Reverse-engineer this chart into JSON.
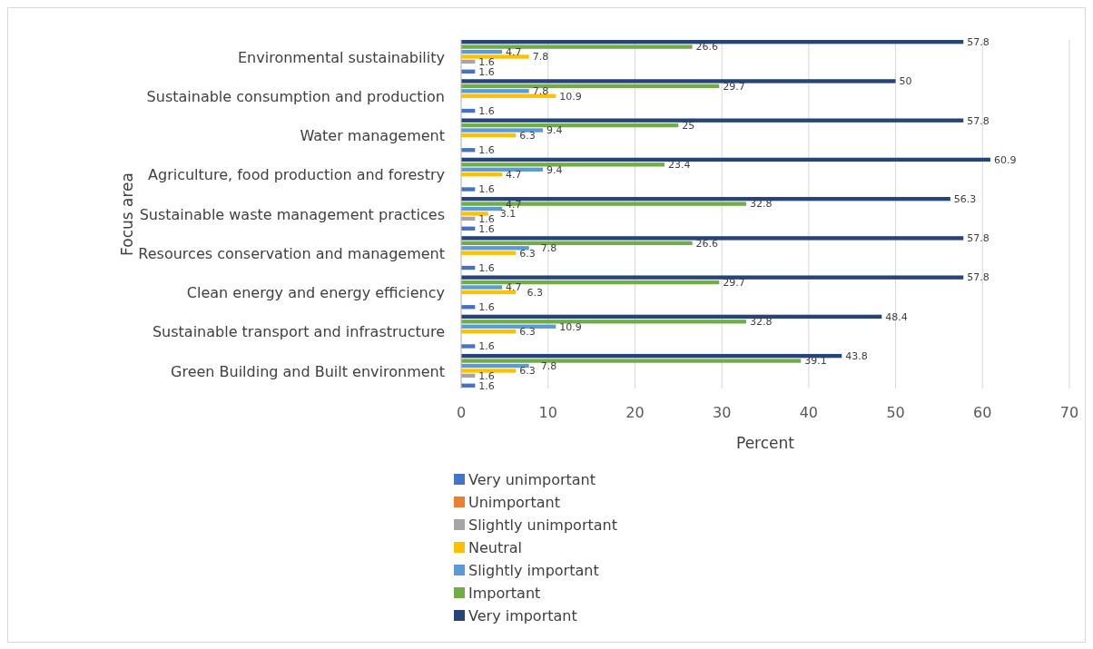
{
  "chart_data": {
    "type": "bar",
    "orientation": "horizontal",
    "xlabel": "Percent",
    "ylabel": "Focus area",
    "categories": [
      "Environmental sustainability",
      "Sustainable consumption and production",
      "Water management",
      "Agriculture, food production and forestry",
      "Sustainable waste management practices",
      "Resources conservation and management",
      "Clean energy and energy efficiency",
      "Sustainable transport and infrastructure",
      "Green Building and Built environment"
    ],
    "series": [
      {
        "name": "Very unimportant",
        "color": "#4472c4",
        "values": [
          1.6,
          1.6,
          1.6,
          1.6,
          1.6,
          1.6,
          1.6,
          1.6,
          1.6
        ]
      },
      {
        "name": "Unimportant",
        "color": "#ed7d31",
        "values": [
          null,
          null,
          null,
          null,
          null,
          null,
          null,
          null,
          null
        ]
      },
      {
        "name": "Slightly unimportant",
        "color": "#a5a5a5",
        "values": [
          1.6,
          null,
          null,
          null,
          1.6,
          null,
          null,
          null,
          1.6
        ]
      },
      {
        "name": "Neutral",
        "color": "#ffc000",
        "values": [
          7.8,
          10.9,
          6.3,
          4.7,
          3.1,
          6.3,
          6.3,
          6.3,
          6.3
        ]
      },
      {
        "name": "Slightly important",
        "color": "#5b9bd5",
        "values": [
          4.7,
          7.8,
          9.4,
          9.4,
          4.7,
          7.8,
          4.7,
          10.9,
          7.8
        ]
      },
      {
        "name": "Important",
        "color": "#70ad47",
        "values": [
          26.6,
          29.7,
          25,
          23.4,
          32.8,
          26.6,
          29.7,
          32.8,
          39.1
        ]
      },
      {
        "name": "Very important",
        "color": "#264478",
        "values": [
          57.8,
          50,
          57.8,
          60.9,
          56.3,
          57.8,
          57.8,
          48.4,
          43.8
        ]
      }
    ],
    "xlim": [
      0,
      70
    ],
    "xticks": [
      0,
      10,
      20,
      30,
      40,
      50,
      60,
      70
    ],
    "grid": "x",
    "legend": "bottom",
    "data_labels": true
  }
}
